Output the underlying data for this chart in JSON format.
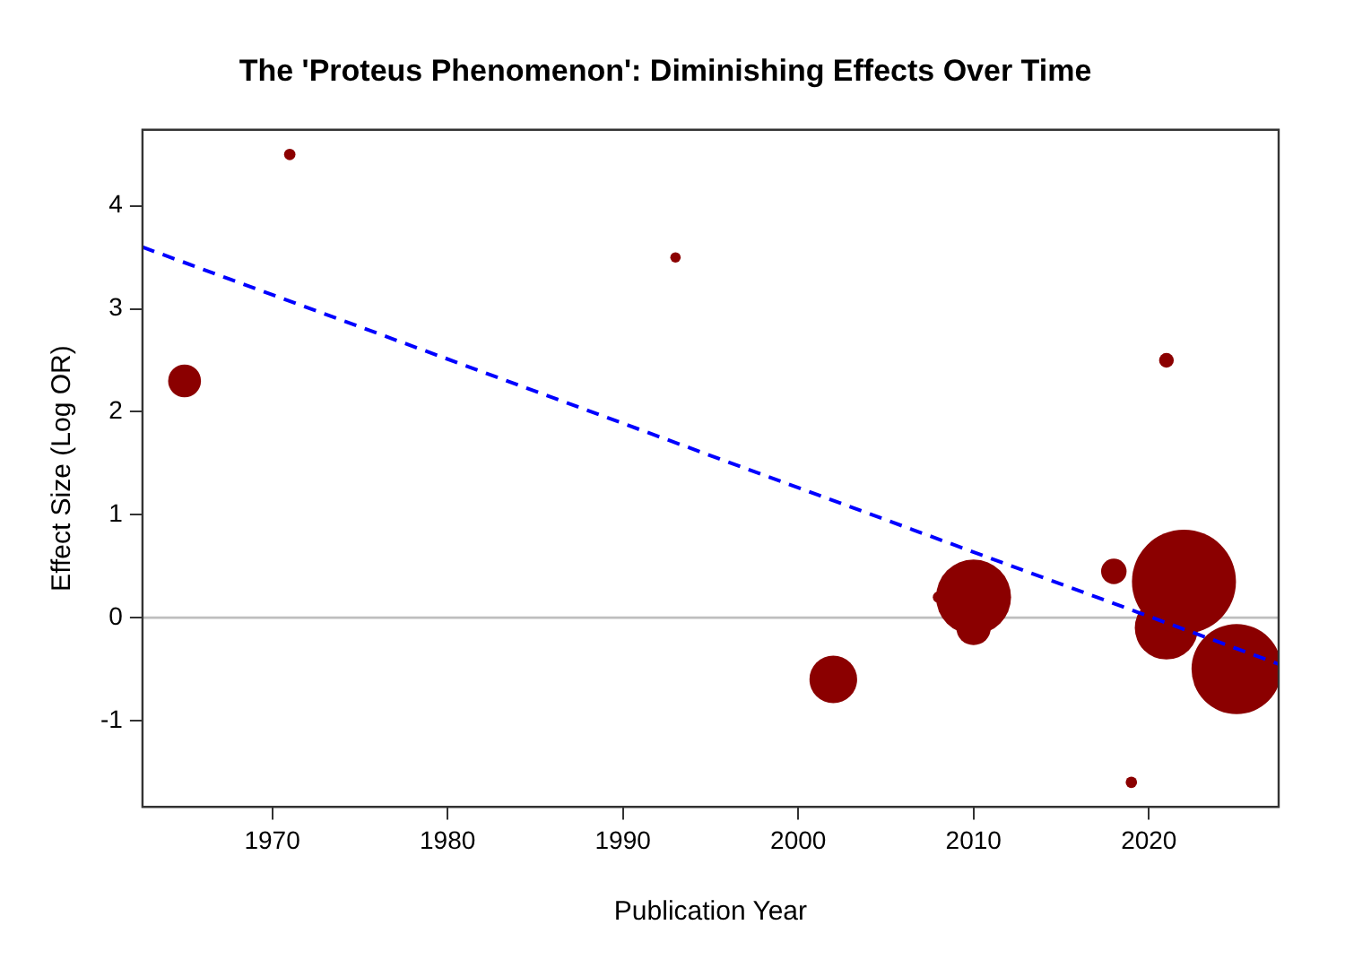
{
  "chart_data": {
    "type": "bubble",
    "title": "The 'Proteus Phenomenon': Diminishing Effects Over Time",
    "xlabel": "Publication Year",
    "ylabel": "Effect Size (Log OR)",
    "x": [
      1965,
      1971,
      1993,
      2002,
      2008,
      2010,
      2010,
      2018,
      2019,
      2021,
      2021,
      2022,
      2025
    ],
    "series": [
      {
        "color": "#8b0000",
        "values": [
          2.3,
          4.5,
          3.5,
          -0.6,
          0.2,
          0.2,
          -0.1,
          0.45,
          -1.6,
          2.5,
          -0.1,
          0.35,
          -0.5
        ],
        "sizes": [
          0.1,
          0.012,
          0.01,
          0.21,
          0.012,
          0.52,
          0.11,
          0.06,
          0.012,
          0.02,
          0.37,
          1,
          0.75
        ]
      },
      {
        "type": "line",
        "color": "#0000ff",
        "line_style": "dashed",
        "marker": "none",
        "x": [
          1962.6,
          2027.4
        ],
        "values": [
          3.6,
          -0.45
        ]
      }
    ],
    "ref_lines": [
      {
        "axis": "y",
        "value": 0,
        "color": "#bebebe"
      }
    ],
    "xlim": [
      1962.6,
      2027.4
    ],
    "xticks": [
      1970,
      1980,
      1990,
      2000,
      2010,
      2020
    ],
    "ylim": [
      -1.84,
      4.74
    ],
    "yticks": [
      -1,
      0,
      1,
      2,
      3,
      4
    ],
    "grid": false,
    "legend": false
  }
}
